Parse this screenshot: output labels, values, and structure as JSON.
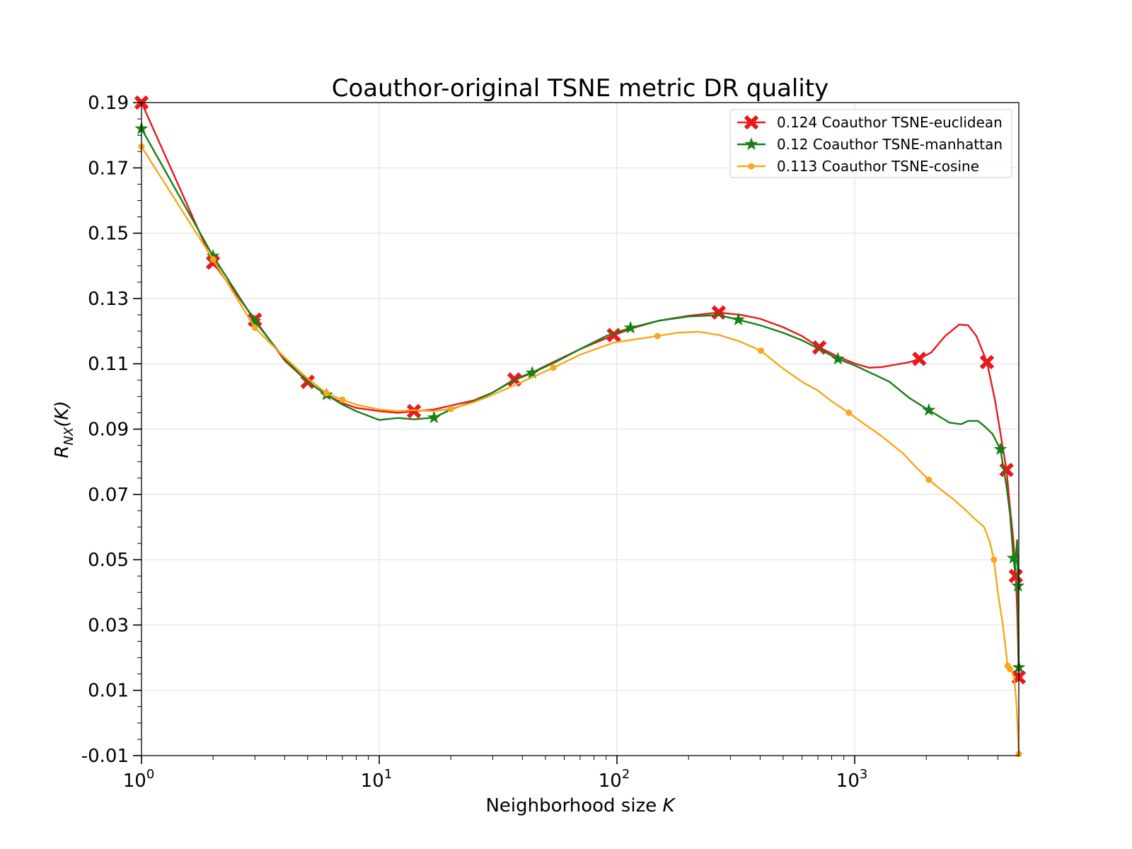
{
  "chart_data": {
    "type": "line",
    "title": "Coauthor-original TSNE metric DR quality",
    "xlabel": "Neighborhood size K",
    "ylabel": "R_NX(K)",
    "ylabel_main": "R",
    "ylabel_sub": "NX",
    "ylabel_tail": "(K)",
    "xlabel_text": "Neighborhood size ",
    "xlabel_var": "K",
    "xscale": "log",
    "xlim": [
      1,
      4900
    ],
    "ylim": [
      -0.01,
      0.19
    ],
    "grid": true,
    "legend_position": "top-right",
    "x_ticks": [
      {
        "value": 1,
        "base": "10",
        "exp": "0"
      },
      {
        "value": 10,
        "base": "10",
        "exp": "1"
      },
      {
        "value": 100,
        "base": "10",
        "exp": "2"
      },
      {
        "value": 1000,
        "base": "10",
        "exp": "3"
      }
    ],
    "y_ticks": [
      {
        "value": 0.19,
        "label": "0.19"
      },
      {
        "value": 0.17,
        "label": "0.17"
      },
      {
        "value": 0.15,
        "label": "0.15"
      },
      {
        "value": 0.13,
        "label": "0.13"
      },
      {
        "value": 0.11,
        "label": "0.11"
      },
      {
        "value": 0.09,
        "label": "0.09"
      },
      {
        "value": 0.07,
        "label": "0.07"
      },
      {
        "value": 0.05,
        "label": "0.05"
      },
      {
        "value": 0.03,
        "label": "0.03"
      },
      {
        "value": 0.01,
        "label": "0.01"
      },
      {
        "value": -0.01,
        "label": "-0.01"
      }
    ],
    "series": [
      {
        "name": "0.124 Coauthor TSNE-euclidean",
        "color": "#e8191c",
        "marker": "x",
        "points": [
          [
            1,
            0.19
          ],
          [
            2,
            0.141
          ],
          [
            3,
            0.1235
          ],
          [
            4,
            0.111
          ],
          [
            5,
            0.1045
          ],
          [
            6,
            0.1005
          ],
          [
            7,
            0.098
          ],
          [
            8,
            0.0965
          ],
          [
            10,
            0.0955
          ],
          [
            12,
            0.095
          ],
          [
            14,
            0.0955
          ],
          [
            17,
            0.096
          ],
          [
            20,
            0.0972
          ],
          [
            25,
            0.0988
          ],
          [
            30,
            0.1012
          ],
          [
            37,
            0.1052
          ],
          [
            45,
            0.1077
          ],
          [
            55,
            0.1108
          ],
          [
            70,
            0.1145
          ],
          [
            97,
            0.1188
          ],
          [
            120,
            0.1212
          ],
          [
            150,
            0.1232
          ],
          [
            200,
            0.1247
          ],
          [
            268,
            0.1257
          ],
          [
            330,
            0.125
          ],
          [
            400,
            0.1238
          ],
          [
            500,
            0.1212
          ],
          [
            600,
            0.1185
          ],
          [
            710,
            0.115
          ],
          [
            850,
            0.1122
          ],
          [
            1000,
            0.1101
          ],
          [
            1150,
            0.1088
          ],
          [
            1300,
            0.109
          ],
          [
            1500,
            0.1098
          ],
          [
            1700,
            0.1105
          ],
          [
            1870,
            0.1115
          ],
          [
            2100,
            0.1135
          ],
          [
            2400,
            0.1185
          ],
          [
            2750,
            0.122
          ],
          [
            3000,
            0.1218
          ],
          [
            3250,
            0.1185
          ],
          [
            3600,
            0.1105
          ],
          [
            3900,
            0.0985
          ],
          [
            4150,
            0.0865
          ],
          [
            4350,
            0.0775
          ],
          [
            4500,
            0.066
          ],
          [
            4650,
            0.056
          ],
          [
            4760,
            0.045
          ],
          [
            4820,
            0.035
          ],
          [
            4860,
            0.0255
          ],
          [
            4900,
            0.014
          ]
        ],
        "marker_points": [
          [
            1,
            0.19
          ],
          [
            2,
            0.141
          ],
          [
            3,
            0.1235
          ],
          [
            5,
            0.1045
          ],
          [
            14,
            0.0955
          ],
          [
            37,
            0.1052
          ],
          [
            97,
            0.1188
          ],
          [
            268,
            0.1257
          ],
          [
            710,
            0.115
          ],
          [
            1870,
            0.1115
          ],
          [
            3600,
            0.1105
          ],
          [
            4350,
            0.0775
          ],
          [
            4760,
            0.045
          ],
          [
            4900,
            0.014
          ]
        ]
      },
      {
        "name": "0.12 Coauthor TSNE-manhattan",
        "color": "#158015",
        "marker": "star",
        "points": [
          [
            1,
            0.182
          ],
          [
            2,
            0.143
          ],
          [
            3,
            0.123
          ],
          [
            4,
            0.1115
          ],
          [
            5,
            0.1045
          ],
          [
            6,
            0.1005
          ],
          [
            7,
            0.0975
          ],
          [
            8,
            0.0955
          ],
          [
            10,
            0.0928
          ],
          [
            12,
            0.0934
          ],
          [
            14,
            0.093
          ],
          [
            17,
            0.0935
          ],
          [
            20,
            0.096
          ],
          [
            25,
            0.0985
          ],
          [
            30,
            0.1012
          ],
          [
            37,
            0.105
          ],
          [
            44,
            0.1072
          ],
          [
            55,
            0.1105
          ],
          [
            70,
            0.1145
          ],
          [
            90,
            0.1185
          ],
          [
            114,
            0.121
          ],
          [
            150,
            0.1232
          ],
          [
            200,
            0.1245
          ],
          [
            268,
            0.1249
          ],
          [
            324,
            0.1235
          ],
          [
            400,
            0.1218
          ],
          [
            500,
            0.1195
          ],
          [
            600,
            0.1172
          ],
          [
            710,
            0.1145
          ],
          [
            850,
            0.1115
          ],
          [
            1000,
            0.1095
          ],
          [
            1200,
            0.1068
          ],
          [
            1400,
            0.1045
          ],
          [
            1700,
            0.0995
          ],
          [
            2050,
            0.0958
          ],
          [
            2500,
            0.092
          ],
          [
            2800,
            0.0915
          ],
          [
            3000,
            0.0925
          ],
          [
            3300,
            0.0925
          ],
          [
            3500,
            0.091
          ],
          [
            3800,
            0.0885
          ],
          [
            4100,
            0.0838
          ],
          [
            4350,
            0.0725
          ],
          [
            4500,
            0.064
          ],
          [
            4650,
            0.0505
          ],
          [
            4720,
            0.0465
          ],
          [
            4760,
            0.051
          ],
          [
            4820,
            0.056
          ],
          [
            4860,
            0.042
          ],
          [
            4900,
            0.017
          ]
        ],
        "marker_points": [
          [
            1,
            0.182
          ],
          [
            2,
            0.143
          ],
          [
            3,
            0.123
          ],
          [
            6,
            0.1005
          ],
          [
            17,
            0.0935
          ],
          [
            44,
            0.1072
          ],
          [
            114,
            0.121
          ],
          [
            324,
            0.1235
          ],
          [
            850,
            0.1115
          ],
          [
            2050,
            0.0958
          ],
          [
            4100,
            0.0838
          ],
          [
            4650,
            0.0505
          ],
          [
            4860,
            0.042
          ],
          [
            4900,
            0.017
          ]
        ]
      },
      {
        "name": "0.113 Coauthor TSNE-cosine",
        "color": "#f9a61a",
        "marker": "dot",
        "points": [
          [
            1,
            0.1765
          ],
          [
            2,
            0.142
          ],
          [
            3,
            0.121
          ],
          [
            4,
            0.112
          ],
          [
            5,
            0.1055
          ],
          [
            6,
            0.101
          ],
          [
            7,
            0.099
          ],
          [
            8,
            0.0975
          ],
          [
            10,
            0.096
          ],
          [
            12,
            0.0955
          ],
          [
            14,
            0.0958
          ],
          [
            17,
            0.0955
          ],
          [
            20,
            0.0962
          ],
          [
            25,
            0.0982
          ],
          [
            30,
            0.1005
          ],
          [
            40,
            0.1045
          ],
          [
            54,
            0.1088
          ],
          [
            70,
            0.1128
          ],
          [
            97,
            0.1165
          ],
          [
            120,
            0.1175
          ],
          [
            148,
            0.1185
          ],
          [
            180,
            0.1195
          ],
          [
            220,
            0.1198
          ],
          [
            270,
            0.1188
          ],
          [
            330,
            0.1168
          ],
          [
            403,
            0.114
          ],
          [
            500,
            0.1085
          ],
          [
            600,
            0.1045
          ],
          [
            700,
            0.1018
          ],
          [
            800,
            0.0985
          ],
          [
            945,
            0.095
          ],
          [
            1100,
            0.0915
          ],
          [
            1300,
            0.0878
          ],
          [
            1600,
            0.0825
          ],
          [
            1800,
            0.0785
          ],
          [
            2050,
            0.0745
          ],
          [
            2300,
            0.0715
          ],
          [
            2600,
            0.0685
          ],
          [
            2900,
            0.0655
          ],
          [
            3200,
            0.0625
          ],
          [
            3500,
            0.06
          ],
          [
            3700,
            0.0555
          ],
          [
            3850,
            0.05
          ],
          [
            4000,
            0.04
          ],
          [
            4200,
            0.03
          ],
          [
            4400,
            0.0175
          ],
          [
            4500,
            0.0165
          ],
          [
            4600,
            0.0155
          ],
          [
            4700,
            0.013
          ],
          [
            4800,
            0.005
          ],
          [
            4900,
            -0.0095
          ]
        ],
        "marker_points": [
          [
            1,
            0.1765
          ],
          [
            2,
            0.142
          ],
          [
            3,
            0.121
          ],
          [
            6,
            0.101
          ],
          [
            7,
            0.099
          ],
          [
            20,
            0.0962
          ],
          [
            54,
            0.1088
          ],
          [
            148,
            0.1185
          ],
          [
            403,
            0.114
          ],
          [
            945,
            0.095
          ],
          [
            2050,
            0.0745
          ],
          [
            3850,
            0.05
          ],
          [
            4400,
            0.0175
          ],
          [
            4500,
            0.0165
          ],
          [
            4900,
            -0.0095
          ]
        ]
      }
    ]
  }
}
